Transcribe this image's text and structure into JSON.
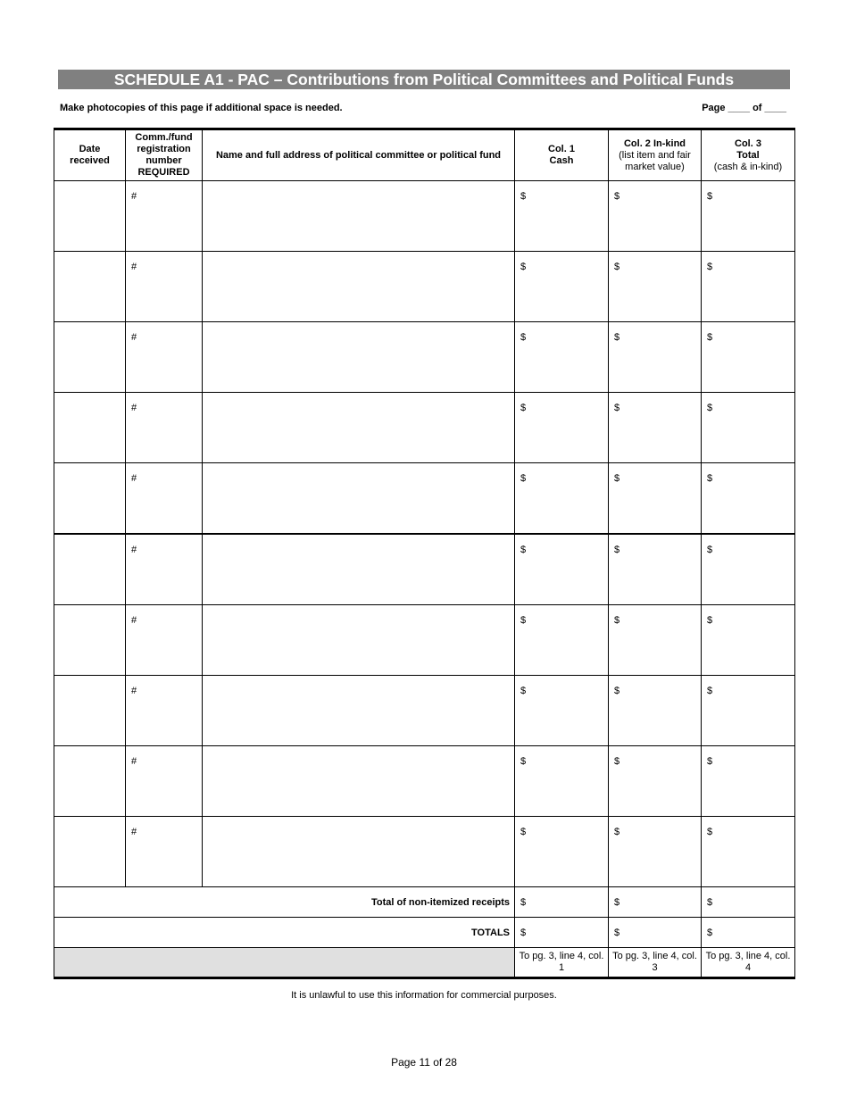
{
  "title": "SCHEDULE A1 - PAC – Contributions from Political Committees and Political Funds",
  "note": "Make photocopies of this page if additional space is needed.",
  "page_of": "Page ____ of ____",
  "headers": {
    "date": "Date received",
    "reg_line1": "Comm./fund registration number",
    "reg_line2": "REQUIRED",
    "name": "Name and full address of political committee or political fund",
    "col1_a": "Col. 1",
    "col1_b": "Cash",
    "col2_a": "Col. 2  In-kind",
    "col2_b": "(list item and fair market value)",
    "col3_a": "Col. 3",
    "col3_b": "Total",
    "col3_c": "(cash & in-kind)"
  },
  "entry_prefix": {
    "reg": "#",
    "amount": "$"
  },
  "entry_row_count": 10,
  "non_itemized_label": "Total of non-itemized receipts",
  "totals_label": "TOTALS",
  "footer": {
    "col1": "To pg. 3, line 4, col. 1",
    "col2": "To pg. 3, line 4, col. 3",
    "col3": "To pg. 3, line 4, col. 4"
  },
  "disclaimer": "It is unlawful to use this information for commercial purposes.",
  "page_number": "Page 11 of 28"
}
